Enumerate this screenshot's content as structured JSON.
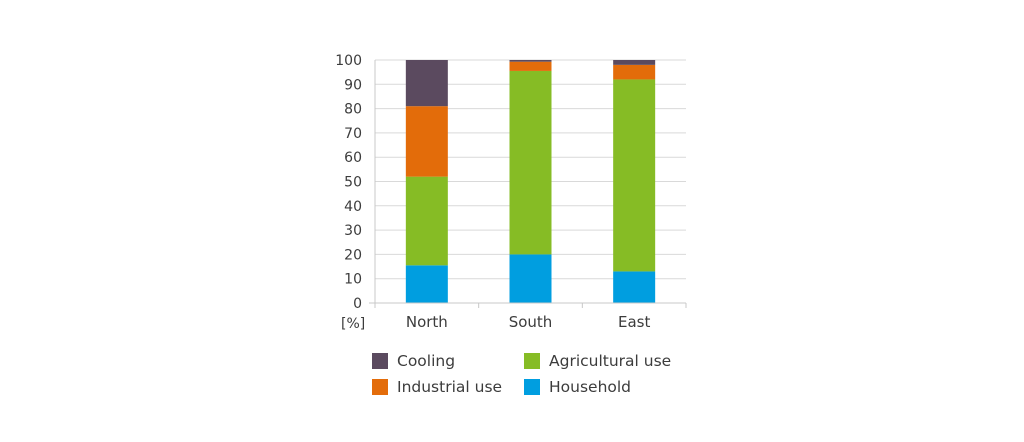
{
  "chart_data": {
    "type": "bar",
    "stacked": true,
    "title": "",
    "xlabel": "",
    "ylabel": "[%]",
    "ylim": [
      0,
      100
    ],
    "yticks": [
      0,
      10,
      20,
      30,
      40,
      50,
      60,
      70,
      80,
      90,
      100
    ],
    "grid": true,
    "categories": [
      "North",
      "South",
      "East"
    ],
    "series": [
      {
        "name": "Household",
        "color": "#009ee0",
        "values": [
          15.5,
          20,
          13
        ]
      },
      {
        "name": "Agricultural use",
        "color": "#86bc25",
        "values": [
          36.5,
          75.5,
          79
        ]
      },
      {
        "name": "Industrial use",
        "color": "#e36c0a",
        "values": [
          29,
          3.8,
          6
        ]
      },
      {
        "name": "Cooling",
        "color": "#5b4a5f",
        "values": [
          19,
          0.7,
          2
        ]
      }
    ],
    "legend": {
      "placement": "bottom",
      "order": [
        "Cooling",
        "Agricultural use",
        "Industrial use",
        "Household"
      ]
    }
  },
  "colors": {
    "gridline": "#d9d9d9",
    "axis": "#c8c8c8",
    "text": "#3c3c3c"
  }
}
